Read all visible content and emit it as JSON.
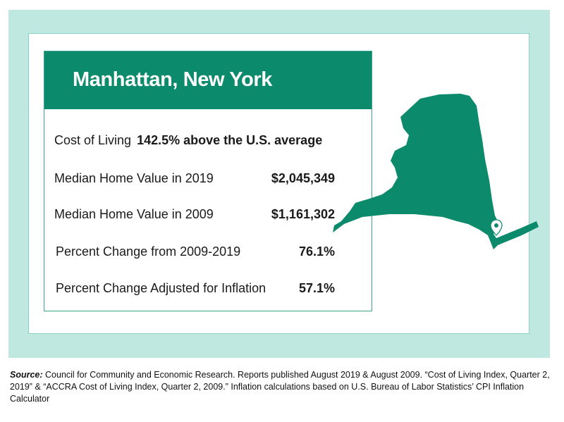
{
  "card": {
    "title": "Manhattan, New York",
    "rows": [
      {
        "label": "Cost of Living",
        "value": "142.5% above the U.S. average"
      },
      {
        "label": "Median Home Value in 2019",
        "value": "$2,045,349"
      },
      {
        "label": "Median Home Value in 2009",
        "value": "$1,161,302"
      },
      {
        "label": "Percent Change from 2009-2019",
        "value": "76.1%"
      },
      {
        "label": "Percent Change Adjusted for Inflation",
        "value": "57.1%"
      }
    ]
  },
  "source": {
    "label": "Source:",
    "text": " Council for Community and Economic Research. Reports published August 2019 & August 2009. “Cost of Living Index, Quarter 2, 2019” & “ACCRA Cost of Living Index, Quarter 2, 2009.” Inflation calculations based on U.S. Bureau of Labor Statistics’ CPI Inflation Calculator"
  },
  "colors": {
    "brand_green": "#0b8a6c",
    "band": "#bfe8e0",
    "pin": "#ffffff"
  },
  "icons": {
    "map": "new-york-state-map-icon",
    "pin": "location-pin-icon"
  }
}
